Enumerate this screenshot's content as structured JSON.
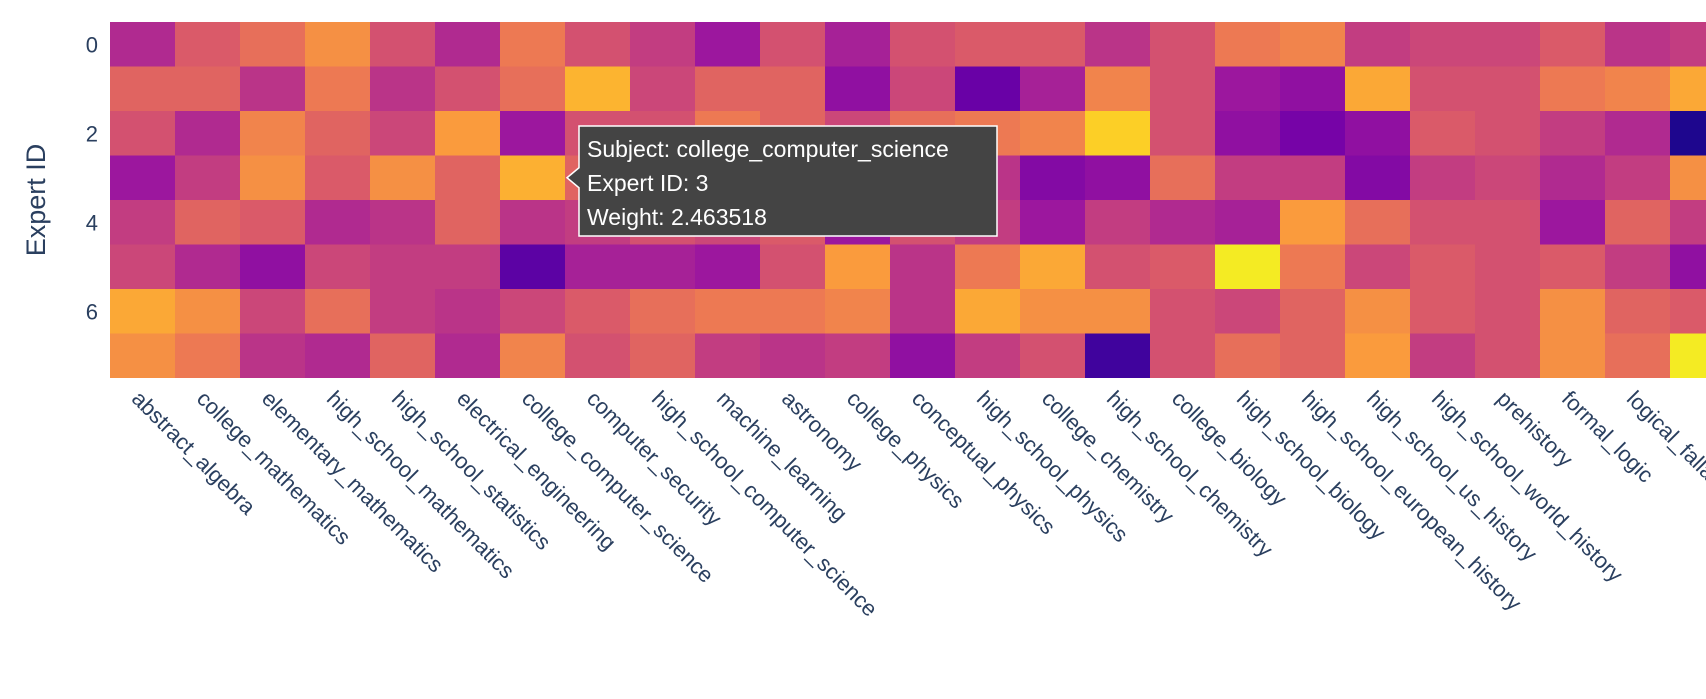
{
  "chart_data": {
    "type": "heatmap",
    "y_label": "Expert ID",
    "x_label": "",
    "y_categories": [
      0,
      1,
      2,
      3,
      4,
      5,
      6,
      7
    ],
    "y_tick_labels": [
      "0",
      "2",
      "4",
      "6"
    ],
    "x_categories": [
      "abstract_algebra",
      "college_mathematics",
      "elementary_mathematics",
      "high_school_mathematics",
      "high_school_statistics",
      "electrical_engineering",
      "college_computer_science",
      "computer_security",
      "high_school_computer_science",
      "machine_learning",
      "astronomy",
      "college_physics",
      "conceptual_physics",
      "high_school_physics",
      "college_chemistry",
      "high_school_chemistry",
      "college_biology",
      "high_school_biology",
      "high_school_european_history",
      "high_school_us_history",
      "high_school_world_history",
      "prehistory",
      "formal_logic",
      "logical_fallacies",
      ""
    ],
    "colorscale": "plasma",
    "value_range": [
      0.0,
      3.0
    ],
    "z": [
      [
        1.2,
        1.7,
        1.9,
        2.2,
        1.6,
        1.2,
        2.0,
        1.6,
        1.4,
        1.0,
        1.6,
        1.1,
        1.6,
        1.7,
        1.7,
        1.3,
        1.6,
        2.0,
        2.1,
        1.4,
        1.5,
        1.5,
        1.7,
        1.3,
        1.4
      ],
      [
        1.8,
        1.8,
        1.3,
        2.0,
        1.3,
        1.6,
        1.9,
        2.5,
        1.5,
        1.8,
        1.8,
        0.9,
        1.5,
        0.6,
        1.1,
        2.1,
        1.6,
        1.0,
        0.9,
        2.4,
        1.6,
        1.6,
        2.0,
        2.1,
        2.4
      ],
      [
        1.6,
        1.2,
        2.1,
        1.8,
        1.5,
        2.3,
        1.0,
        1.6,
        1.6,
        2.0,
        1.8,
        1.5,
        1.9,
        2.0,
        2.1,
        2.7,
        1.6,
        0.9,
        0.7,
        0.9,
        1.7,
        1.6,
        1.4,
        1.2,
        0.1
      ],
      [
        1.0,
        1.4,
        2.2,
        1.7,
        2.2,
        1.8,
        2.4635,
        1.8,
        1.6,
        1.7,
        1.5,
        1.3,
        1.4,
        1.3,
        0.8,
        0.9,
        1.9,
        1.4,
        1.4,
        0.8,
        1.4,
        1.5,
        1.2,
        1.4,
        2.2
      ],
      [
        1.4,
        1.8,
        1.7,
        1.2,
        1.3,
        1.8,
        1.3,
        1.4,
        1.6,
        1.5,
        1.7,
        1.0,
        1.6,
        1.4,
        1.0,
        1.4,
        1.2,
        1.1,
        2.3,
        1.9,
        1.6,
        1.6,
        1.0,
        1.8,
        1.4
      ],
      [
        1.5,
        1.2,
        0.9,
        1.5,
        1.4,
        1.4,
        0.5,
        1.1,
        1.1,
        1.0,
        1.6,
        2.3,
        1.3,
        2.0,
        2.4,
        1.6,
        1.7,
        2.9,
        2.0,
        1.5,
        1.7,
        1.6,
        1.7,
        1.4,
        0.9
      ],
      [
        2.4,
        2.2,
        1.5,
        1.9,
        1.4,
        1.3,
        1.5,
        1.7,
        1.9,
        2.0,
        2.0,
        2.1,
        1.3,
        2.4,
        2.2,
        2.2,
        1.6,
        1.5,
        1.8,
        2.2,
        1.7,
        1.6,
        2.2,
        1.8,
        1.7
      ],
      [
        2.2,
        2.0,
        1.3,
        1.2,
        1.8,
        1.2,
        2.1,
        1.6,
        1.8,
        1.4,
        1.3,
        1.4,
        0.9,
        1.4,
        1.6,
        0.3,
        1.6,
        1.9,
        1.8,
        2.3,
        1.4,
        1.6,
        2.2,
        1.9,
        2.9
      ]
    ],
    "hover": {
      "col": 6,
      "row": 3,
      "lines": [
        "Subject: college_computer_science",
        "Expert ID: 3",
        "Weight: 2.463518"
      ]
    }
  }
}
